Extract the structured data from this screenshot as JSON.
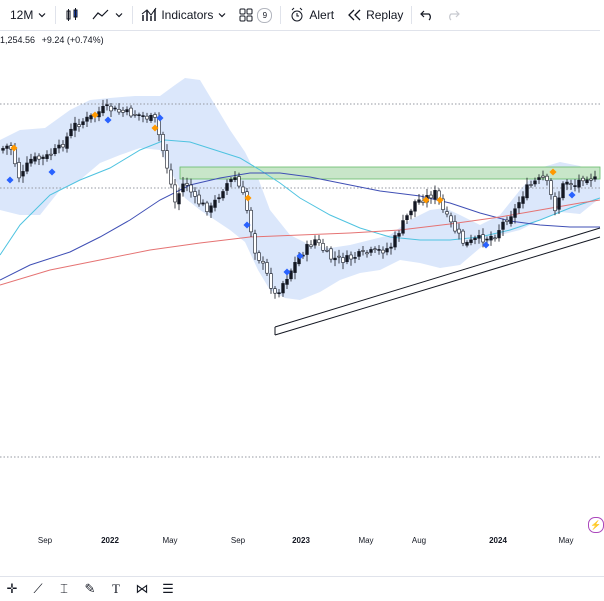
{
  "toolbar": {
    "interval": "12M",
    "indicators_label": "Indicators",
    "templates_count": "9",
    "alert_label": "Alert",
    "replay_label": "Replay"
  },
  "legend": {
    "price": "1,254.56",
    "change": "+9.24 (+0.74%)"
  },
  "time_axis": {
    "labels": [
      "Sep",
      "2022",
      "May",
      "Sep",
      "2023",
      "May",
      "Aug",
      "2024",
      "May"
    ]
  },
  "colors": {
    "candle_up": "#131722",
    "candle_down": "#ffffff",
    "bollinger_fill": "#dbe7fb",
    "ma_cyan": "#4fc3e0",
    "ma_blue": "#3f4fb5",
    "ma_red": "#e57373",
    "resistance_zone": "#c8e6c9",
    "signal_orange": "#ff9800",
    "signal_blue": "#2962ff",
    "dotted_line": "#9598a1"
  },
  "icons": [
    "chevron-down-icon",
    "bar-style-icon",
    "line-chart-icon",
    "indicators-icon",
    "layouts-icon",
    "alert-icon",
    "replay-icon",
    "undo-icon",
    "redo-icon"
  ],
  "bottom_tools": [
    "crosshair-icon",
    "trend-line-icon",
    "fib-icon",
    "brush-icon",
    "text-icon",
    "pattern-icon",
    "measure-icon"
  ]
}
